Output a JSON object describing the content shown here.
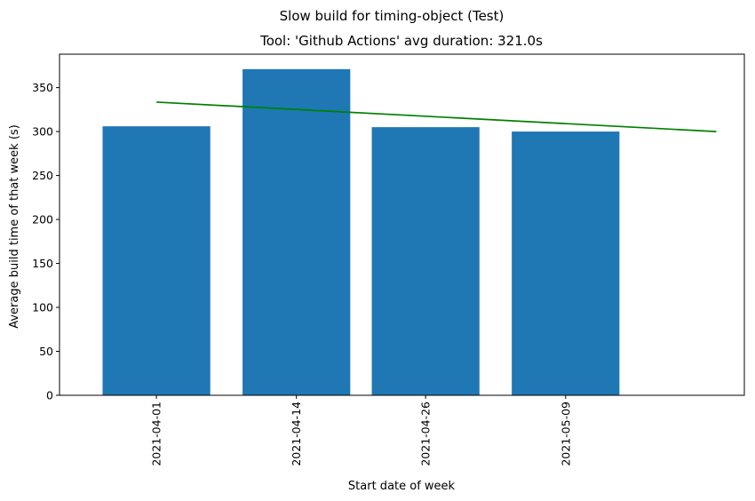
{
  "chart_data": {
    "type": "bar",
    "suptitle": "Slow build for timing-object (Test)",
    "title": "Tool: 'Github Actions' avg duration: 321.0s",
    "xlabel": "Start date of week",
    "ylabel": "Average build time of that week (s)",
    "categories": [
      "2021-04-01",
      "2021-04-14",
      "2021-04-26",
      "2021-05-09"
    ],
    "values": [
      306,
      371,
      305,
      300
    ],
    "ylim": [
      0,
      388
    ],
    "yticks": [
      0,
      50,
      100,
      150,
      200,
      250,
      300,
      350
    ],
    "trend": {
      "x_start": "2021-04-01",
      "y_start": 333.5,
      "x_end": "2021-05-23",
      "y_end": 300
    },
    "grid": false,
    "colors": {
      "bar": "#1f77b4",
      "trend": "#008000"
    }
  }
}
